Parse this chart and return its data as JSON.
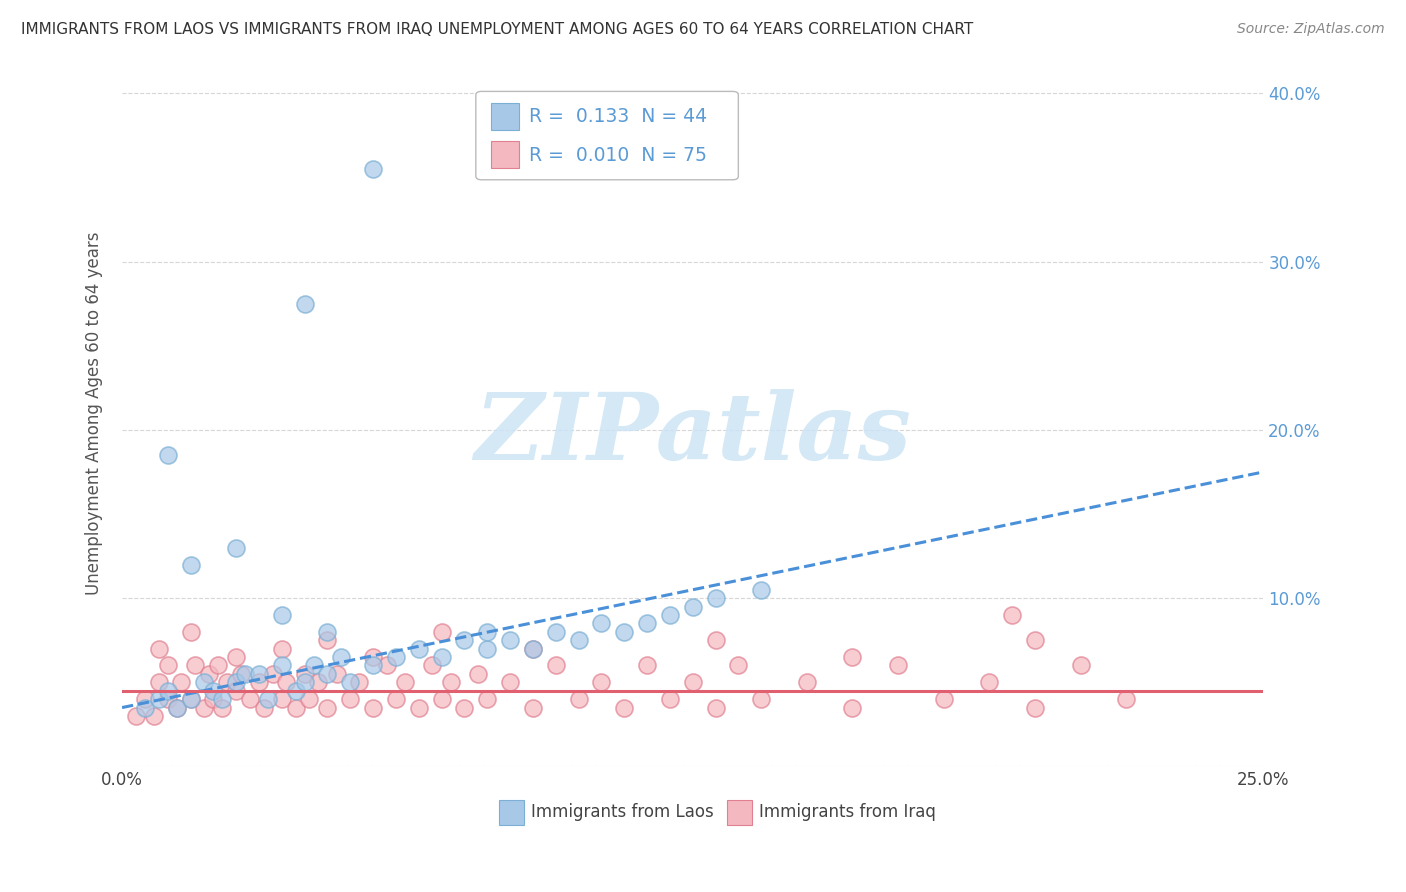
{
  "title": "IMMIGRANTS FROM LAOS VS IMMIGRANTS FROM IRAQ UNEMPLOYMENT AMONG AGES 60 TO 64 YEARS CORRELATION CHART",
  "source": "Source: ZipAtlas.com",
  "ylabel": "Unemployment Among Ages 60 to 64 years",
  "xlim": [
    0.0,
    0.25
  ],
  "ylim": [
    0.0,
    0.42
  ],
  "x_ticks": [
    0.0,
    0.25
  ],
  "x_tick_labels": [
    "0.0%",
    "25.0%"
  ],
  "y_ticks": [
    0.0,
    0.1,
    0.2,
    0.3,
    0.4
  ],
  "y_tick_labels_right": [
    "",
    "10.0%",
    "20.0%",
    "30.0%",
    "40.0%"
  ],
  "laos_color": "#a8c8e8",
  "laos_edge_color": "#7bafd4",
  "iraq_color": "#f4b8c0",
  "iraq_edge_color": "#e08090",
  "laos_R": "0.133",
  "laos_N": "44",
  "iraq_R": "0.010",
  "iraq_N": "75",
  "watermark_text": "ZIPatlas",
  "watermark_color": "#cde4f5",
  "background_color": "#ffffff",
  "grid_color": "#cccccc",
  "legend_label_laos": "Immigrants from Laos",
  "legend_label_iraq": "Immigrants from Iraq",
  "laos_trend_color": "#4a90d9",
  "iraq_trend_color": "#e06070",
  "laos_scatter_x": [
    0.005,
    0.008,
    0.01,
    0.012,
    0.015,
    0.018,
    0.02,
    0.022,
    0.025,
    0.027,
    0.03,
    0.032,
    0.035,
    0.038,
    0.04,
    0.042,
    0.045,
    0.048,
    0.05,
    0.055,
    0.06,
    0.065,
    0.07,
    0.075,
    0.08,
    0.085,
    0.09,
    0.095,
    0.1,
    0.105,
    0.11,
    0.115,
    0.12,
    0.125,
    0.13,
    0.14,
    0.015,
    0.025,
    0.035,
    0.045,
    0.01,
    0.04,
    0.055,
    0.08
  ],
  "laos_scatter_y": [
    0.035,
    0.04,
    0.045,
    0.035,
    0.04,
    0.05,
    0.045,
    0.04,
    0.05,
    0.055,
    0.055,
    0.04,
    0.06,
    0.045,
    0.05,
    0.06,
    0.055,
    0.065,
    0.05,
    0.06,
    0.065,
    0.07,
    0.065,
    0.075,
    0.07,
    0.075,
    0.07,
    0.08,
    0.075,
    0.085,
    0.08,
    0.085,
    0.09,
    0.095,
    0.1,
    0.105,
    0.12,
    0.13,
    0.09,
    0.08,
    0.185,
    0.275,
    0.355,
    0.08
  ],
  "iraq_scatter_x": [
    0.003,
    0.005,
    0.007,
    0.008,
    0.01,
    0.01,
    0.012,
    0.013,
    0.015,
    0.016,
    0.018,
    0.019,
    0.02,
    0.021,
    0.022,
    0.023,
    0.025,
    0.026,
    0.028,
    0.03,
    0.031,
    0.033,
    0.035,
    0.036,
    0.038,
    0.04,
    0.041,
    0.043,
    0.045,
    0.047,
    0.05,
    0.052,
    0.055,
    0.058,
    0.06,
    0.062,
    0.065,
    0.068,
    0.07,
    0.072,
    0.075,
    0.078,
    0.08,
    0.085,
    0.09,
    0.095,
    0.1,
    0.105,
    0.11,
    0.115,
    0.12,
    0.125,
    0.13,
    0.135,
    0.14,
    0.15,
    0.16,
    0.17,
    0.18,
    0.19,
    0.2,
    0.21,
    0.22,
    0.008,
    0.015,
    0.025,
    0.035,
    0.045,
    0.055,
    0.07,
    0.09,
    0.13,
    0.16,
    0.195,
    0.2
  ],
  "iraq_scatter_y": [
    0.03,
    0.04,
    0.03,
    0.05,
    0.04,
    0.06,
    0.035,
    0.05,
    0.04,
    0.06,
    0.035,
    0.055,
    0.04,
    0.06,
    0.035,
    0.05,
    0.045,
    0.055,
    0.04,
    0.05,
    0.035,
    0.055,
    0.04,
    0.05,
    0.035,
    0.055,
    0.04,
    0.05,
    0.035,
    0.055,
    0.04,
    0.05,
    0.035,
    0.06,
    0.04,
    0.05,
    0.035,
    0.06,
    0.04,
    0.05,
    0.035,
    0.055,
    0.04,
    0.05,
    0.035,
    0.06,
    0.04,
    0.05,
    0.035,
    0.06,
    0.04,
    0.05,
    0.035,
    0.06,
    0.04,
    0.05,
    0.035,
    0.06,
    0.04,
    0.05,
    0.035,
    0.06,
    0.04,
    0.07,
    0.08,
    0.065,
    0.07,
    0.075,
    0.065,
    0.08,
    0.07,
    0.075,
    0.065,
    0.09,
    0.075
  ]
}
